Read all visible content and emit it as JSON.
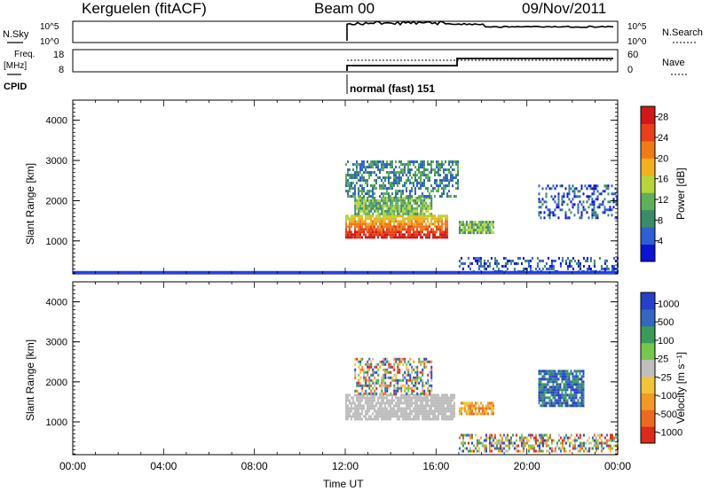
{
  "header": {
    "station": "Kerguelen (fitACF)",
    "beam": "Beam 00",
    "date": "09/Nov/2011"
  },
  "strip_panels": {
    "nsky": {
      "left_label": "N.Sky",
      "right_label": "N.Search",
      "left_ticks": [
        "10^5",
        "10^0"
      ],
      "right_ticks": [
        "10^5",
        "10^0"
      ]
    },
    "freq": {
      "left_label_line1": "Freq.",
      "left_label_line2": "[MHz]",
      "right_label": "Nave",
      "left_ticks": [
        "18",
        "8"
      ],
      "right_ticks": [
        "60",
        "0"
      ]
    },
    "cpid": {
      "label": "CPID",
      "mode_text": "normal (fast) 151"
    }
  },
  "colors": {
    "ground_scatter": "#bebebe",
    "axis": "#000000"
  },
  "chart_data": [
    {
      "type": "heatmap",
      "ylabel": "Slant Range [km]",
      "xlabel": "",
      "ylim": [
        180,
        4500
      ],
      "yticks": [
        "1000",
        "2000",
        "3000",
        "4000"
      ],
      "xlim": [
        "00:00",
        "24:00"
      ],
      "colorbar": {
        "label": "Power [dB]",
        "ticks": [
          "4",
          "8",
          "12",
          "16",
          "20",
          "24",
          "28"
        ],
        "range": [
          0,
          30
        ]
      },
      "regions": [
        {
          "t": [
            12.0,
            16.5
          ],
          "r": [
            1100,
            1650
          ],
          "level": "high"
        },
        {
          "t": [
            12.4,
            15.8
          ],
          "r": [
            1650,
            2100
          ],
          "level": "mid"
        },
        {
          "t": [
            12.0,
            17.0
          ],
          "r": [
            2100,
            3000
          ],
          "level": "low-mid"
        },
        {
          "t": [
            17.0,
            18.5
          ],
          "r": [
            1200,
            1500
          ],
          "level": "mid"
        },
        {
          "t": [
            20.5,
            24.0
          ],
          "r": [
            1600,
            2400
          ],
          "level": "low"
        },
        {
          "t": [
            17.0,
            24.0
          ],
          "r": [
            250,
            600
          ],
          "level": "low"
        }
      ]
    },
    {
      "type": "heatmap",
      "ylabel": "Slant Range [km]",
      "xlabel": "Time UT",
      "ylim": [
        180,
        4500
      ],
      "yticks": [
        "1000",
        "2000",
        "3000",
        "4000"
      ],
      "xlim": [
        "00:00",
        "24:00"
      ],
      "xticks": [
        "00:00",
        "04:00",
        "08:00",
        "12:00",
        "16:00",
        "20:00",
        "00:00"
      ],
      "colorbar": {
        "label": "Velocity [m s⁻¹]",
        "ticks": [
          "1000",
          "500",
          "100",
          "25",
          "-25",
          "-100",
          "-500",
          "-1000"
        ],
        "range": [
          -1000,
          1000
        ]
      },
      "regions": [
        {
          "t": [
            12.0,
            16.8
          ],
          "r": [
            1100,
            1700
          ],
          "level": "ground-scatter"
        },
        {
          "t": [
            12.4,
            15.8
          ],
          "r": [
            1700,
            2600
          ],
          "level": "mixed"
        },
        {
          "t": [
            17.0,
            18.5
          ],
          "r": [
            1200,
            1500
          ],
          "level": "negative"
        },
        {
          "t": [
            20.5,
            22.5
          ],
          "r": [
            1400,
            2300
          ],
          "level": "positive"
        },
        {
          "t": [
            17.0,
            24.0
          ],
          "r": [
            250,
            700
          ],
          "level": "mixed"
        }
      ]
    }
  ]
}
